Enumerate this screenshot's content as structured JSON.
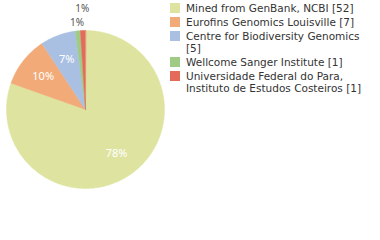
{
  "chart_data": {
    "type": "pie",
    "categories": [
      "Mined from GenBank, NCBI [52]",
      "Eurofins Genomics Louisville [7]",
      "Centre for Biodiversity Genomics [5]",
      "Wellcome Sanger Institute [1]",
      "Universidade Federal do Para, Instituto de Estudos Costeiros [1]"
    ],
    "values": [
      78,
      10,
      7,
      1,
      1
    ],
    "value_labels": [
      "78%",
      "10%",
      "7%",
      "1%",
      "1%"
    ],
    "colors": [
      "#dee4a0",
      "#f2aa78",
      "#a9c0e2",
      "#9fcb86",
      "#e46a5a"
    ],
    "data_labels": true,
    "legend": "right"
  }
}
